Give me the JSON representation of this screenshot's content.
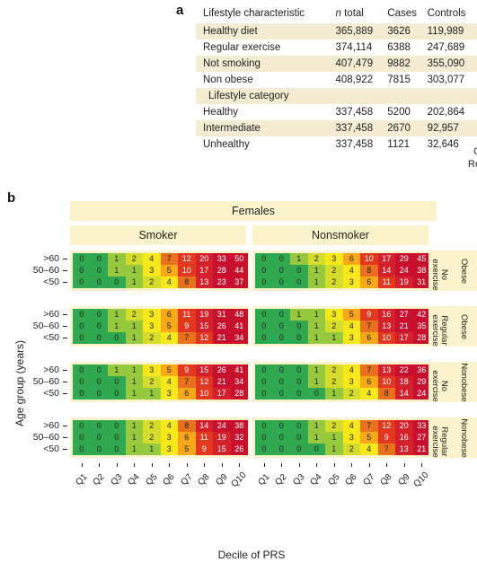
{
  "panel_a": {
    "label": "a",
    "headers": [
      "Lifestyle characteristic",
      "n total",
      "Cases",
      "Controls"
    ],
    "rows": [
      {
        "label": "Healthy diet",
        "n_total": "365,889",
        "cases": "3626",
        "controls": "119,989",
        "shaded": true
      },
      {
        "label": "Regular exercise",
        "n_total": "374,114",
        "cases": "6388",
        "controls": "247,689",
        "shaded": false
      },
      {
        "label": "Not smoking",
        "n_total": "407,479",
        "cases": "9882",
        "controls": "355,090",
        "shaded": true
      },
      {
        "label": "Non obese",
        "n_total": "408,922",
        "cases": "7815",
        "controls": "303,077",
        "shaded": false
      },
      {
        "label": "Lifestyle category",
        "n_total": "",
        "cases": "",
        "controls": "",
        "shaded": true,
        "subheader": true
      },
      {
        "label": "Healthy",
        "n_total": "337,458",
        "cases": "5200",
        "controls": "202,864",
        "shaded": false
      },
      {
        "label": "Intermediate",
        "n_total": "337,458",
        "cases": "2670",
        "controls": "92,957",
        "shaded": true
      },
      {
        "label": "Unhealthy",
        "n_total": "337,458",
        "cases": "1121",
        "controls": "32,646",
        "shaded": false
      }
    ],
    "clipped_text": [
      "C",
      "Re"
    ]
  },
  "panel_b": {
    "label": "b",
    "banner": "Females",
    "columns": [
      "Smoker",
      "Nonsmoker"
    ],
    "ylabel": "Age group (years)",
    "xlabel": "Decile of PRS",
    "deciles": [
      "Q1",
      "Q2",
      "Q3",
      "Q4",
      "Q5",
      "Q6",
      "Q7",
      "Q8",
      "Q9",
      "Q10"
    ],
    "age_groups": [
      ">60",
      "50–60",
      "<50"
    ],
    "groups": [
      {
        "exercise": "No\nexercise",
        "obesity": "Obese"
      },
      {
        "exercise": "Regular\nexercise",
        "obesity": "Obese"
      },
      {
        "exercise": "No\nexercise",
        "obesity": "Nonobese"
      },
      {
        "exercise": "Regular\nexercise",
        "obesity": "Nonobese"
      }
    ],
    "colors": [
      "#2fa84f",
      "#5cb846",
      "#96c93d",
      "#d4dc2c",
      "#f6e81a",
      "#f6a81a",
      "#e8701e",
      "#e2381f",
      "#d4202a",
      "#c8102e"
    ]
  },
  "chart_data": {
    "type": "heatmap",
    "title": "Females",
    "xlabel": "Decile of PRS",
    "ylabel": "Age group (years)",
    "x": [
      "Q1",
      "Q2",
      "Q3",
      "Q4",
      "Q5",
      "Q6",
      "Q7",
      "Q8",
      "Q9",
      "Q10"
    ],
    "panels": [
      {
        "smoking": "Smoker",
        "exercise": "No exercise",
        "obesity": "Obese",
        "rows": {
          ">60": [
            0,
            0,
            1,
            2,
            4,
            7,
            12,
            20,
            33,
            50
          ],
          "50–60": [
            0,
            0,
            1,
            1,
            3,
            5,
            10,
            17,
            28,
            44
          ],
          "<50": [
            0,
            0,
            0,
            1,
            2,
            4,
            8,
            13,
            23,
            37
          ]
        }
      },
      {
        "smoking": "Nonsmoker",
        "exercise": "No exercise",
        "obesity": "Obese",
        "rows": {
          ">60": [
            0,
            0,
            1,
            2,
            3,
            6,
            10,
            17,
            29,
            45
          ],
          "50–60": [
            0,
            0,
            0,
            1,
            2,
            4,
            8,
            14,
            24,
            38
          ],
          "<50": [
            0,
            0,
            0,
            1,
            2,
            3,
            6,
            11,
            19,
            31
          ]
        }
      },
      {
        "smoking": "Smoker",
        "exercise": "Regular exercise",
        "obesity": "Obese",
        "rows": {
          ">60": [
            0,
            0,
            1,
            2,
            3,
            6,
            11,
            19,
            31,
            48
          ],
          "50–60": [
            0,
            0,
            1,
            1,
            3,
            5,
            9,
            15,
            26,
            41
          ],
          "<50": [
            0,
            0,
            0,
            1,
            2,
            4,
            7,
            12,
            21,
            34
          ]
        }
      },
      {
        "smoking": "Nonsmoker",
        "exercise": "Regular exercise",
        "obesity": "Obese",
        "rows": {
          ">60": [
            0,
            0,
            1,
            1,
            3,
            5,
            9,
            16,
            27,
            42
          ],
          "50–60": [
            0,
            0,
            0,
            1,
            2,
            4,
            7,
            13,
            21,
            35
          ],
          "<50": [
            0,
            0,
            0,
            1,
            1,
            3,
            6,
            10,
            17,
            28
          ]
        }
      },
      {
        "smoking": "Smoker",
        "exercise": "No exercise",
        "obesity": "Nonobese",
        "rows": {
          ">60": [
            0,
            0,
            1,
            1,
            3,
            5,
            9,
            15,
            26,
            41
          ],
          "50–60": [
            0,
            0,
            0,
            1,
            2,
            4,
            7,
            12,
            21,
            34
          ],
          "<50": [
            0,
            0,
            0,
            1,
            1,
            3,
            6,
            10,
            17,
            28
          ]
        }
      },
      {
        "smoking": "Nonsmoker",
        "exercise": "No exercise",
        "obesity": "Nonobese",
        "rows": {
          ">60": [
            0,
            0,
            0,
            1,
            2,
            4,
            7,
            13,
            22,
            36
          ],
          "50–60": [
            0,
            0,
            0,
            1,
            2,
            3,
            6,
            10,
            18,
            29
          ],
          "<50": [
            0,
            0,
            0,
            0,
            1,
            2,
            4,
            8,
            14,
            24
          ]
        }
      },
      {
        "smoking": "Smoker",
        "exercise": "Regular exercise",
        "obesity": "Nonobese",
        "rows": {
          ">60": [
            0,
            0,
            0,
            1,
            2,
            4,
            8,
            14,
            24,
            38
          ],
          "50–60": [
            0,
            0,
            0,
            1,
            2,
            3,
            6,
            11,
            19,
            32
          ],
          "<50": [
            0,
            0,
            0,
            1,
            1,
            3,
            5,
            9,
            15,
            26
          ]
        }
      },
      {
        "smoking": "Nonsmoker",
        "exercise": "Regular exercise",
        "obesity": "Nonobese",
        "rows": {
          ">60": [
            0,
            0,
            0,
            1,
            2,
            4,
            7,
            12,
            20,
            33
          ],
          "50–60": [
            0,
            0,
            0,
            1,
            1,
            3,
            5,
            9,
            16,
            27
          ],
          "<50": [
            0,
            0,
            0,
            0,
            1,
            2,
            4,
            7,
            13,
            21
          ]
        }
      }
    ]
  }
}
